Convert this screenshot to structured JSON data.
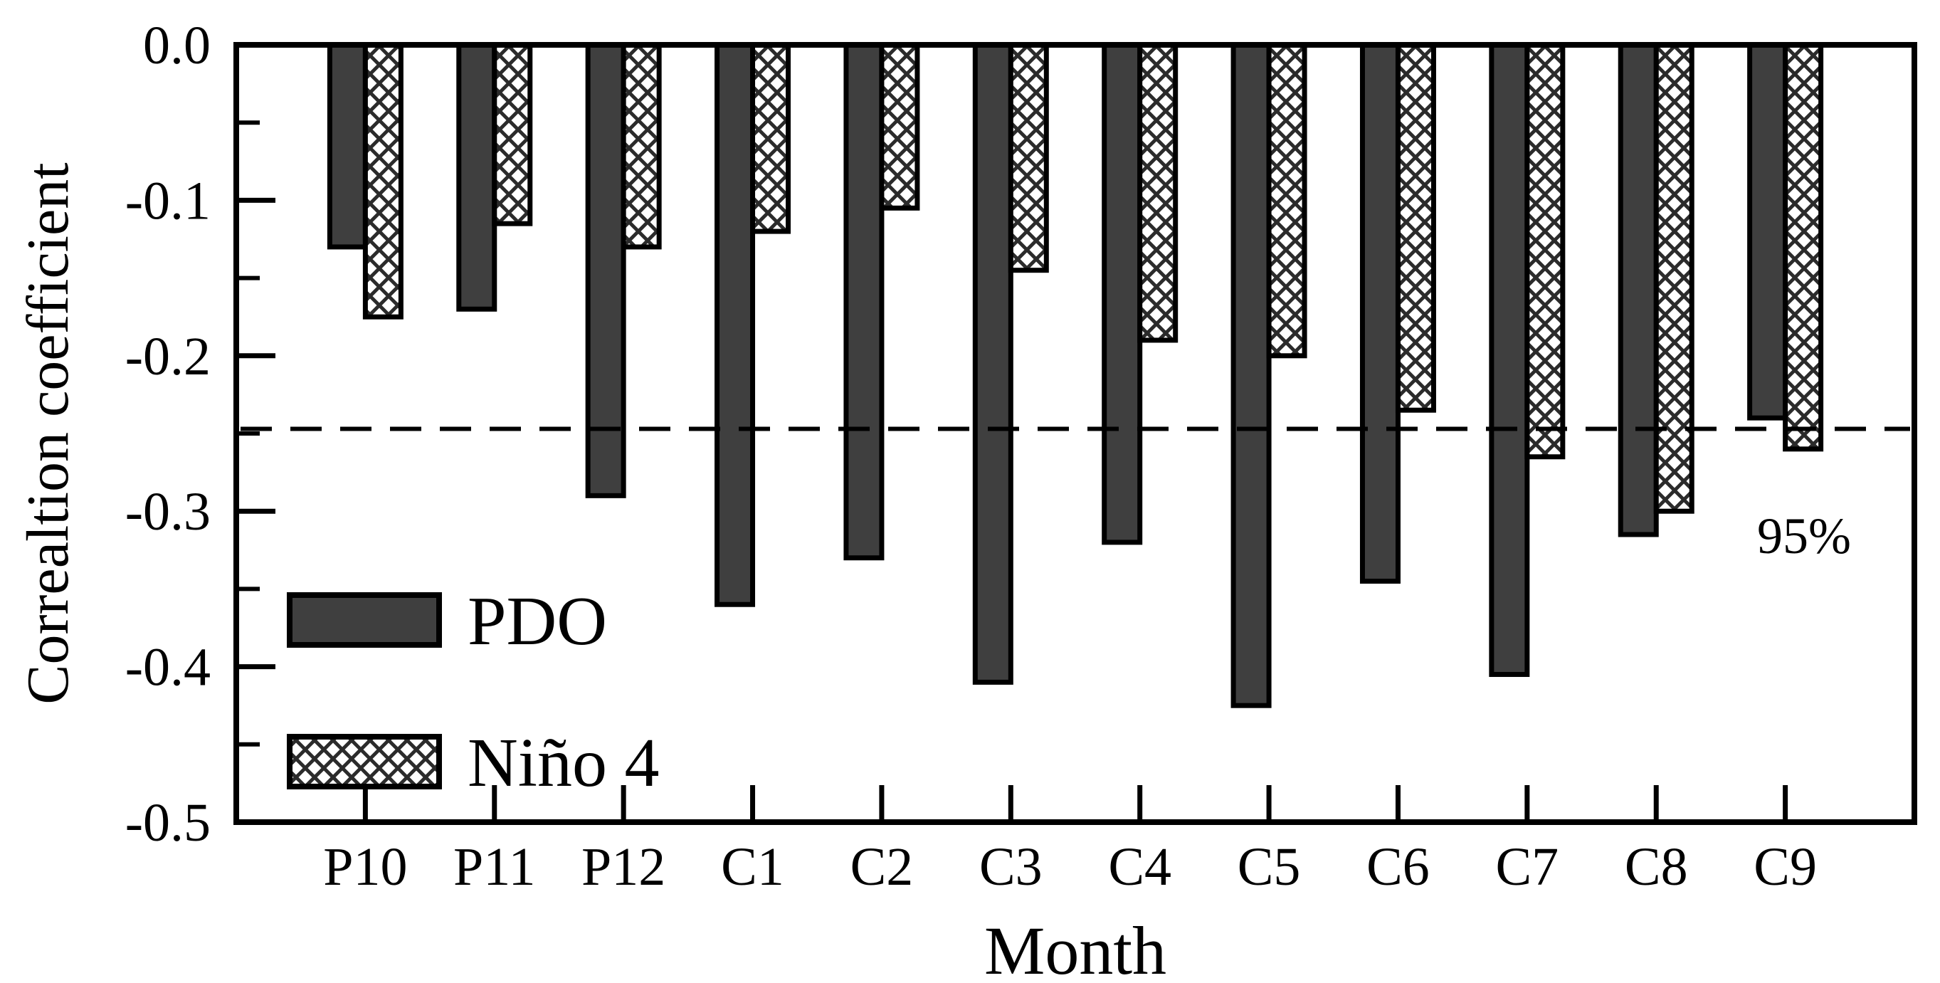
{
  "figure": {
    "background": "#ffffff",
    "annotation_95": "95%"
  },
  "chart_data": {
    "type": "bar",
    "title": "",
    "xlabel": "Month",
    "ylabel": "Correaltion coefficient",
    "categories": [
      "P10",
      "P11",
      "P12",
      "C1",
      "C2",
      "C3",
      "C4",
      "C5",
      "C6",
      "C7",
      "C8",
      "C9"
    ],
    "series": [
      {
        "name": "PDO",
        "style": "solid-dark",
        "fill": "#3f3f3f",
        "values": [
          -0.13,
          -0.17,
          -0.29,
          -0.36,
          -0.33,
          -0.41,
          -0.32,
          -0.425,
          -0.345,
          -0.405,
          -0.315,
          -0.24
        ]
      },
      {
        "name": "Niño 4",
        "style": "crosshatch",
        "fill": "#ffffff",
        "hatch_color": "#2b2b2b",
        "values": [
          -0.175,
          -0.115,
          -0.13,
          -0.12,
          -0.105,
          -0.145,
          -0.19,
          -0.2,
          -0.235,
          -0.265,
          -0.3,
          -0.26
        ]
      }
    ],
    "ylim": [
      -0.5,
      0
    ],
    "yticks_major": {
      "labels": [
        "0.0",
        "-0.1",
        "-0.2",
        "-0.3",
        "-0.4",
        "-0.5"
      ],
      "values": [
        0,
        -0.1,
        -0.2,
        -0.3,
        -0.4,
        -0.5
      ]
    },
    "ytick_minor_step": 0.05,
    "grid": false,
    "legend_position": "inside-lower-left",
    "significance": {
      "value": -0.247,
      "label": "95%"
    },
    "axis_color": "#000000",
    "bar_border_color": "#000000"
  }
}
